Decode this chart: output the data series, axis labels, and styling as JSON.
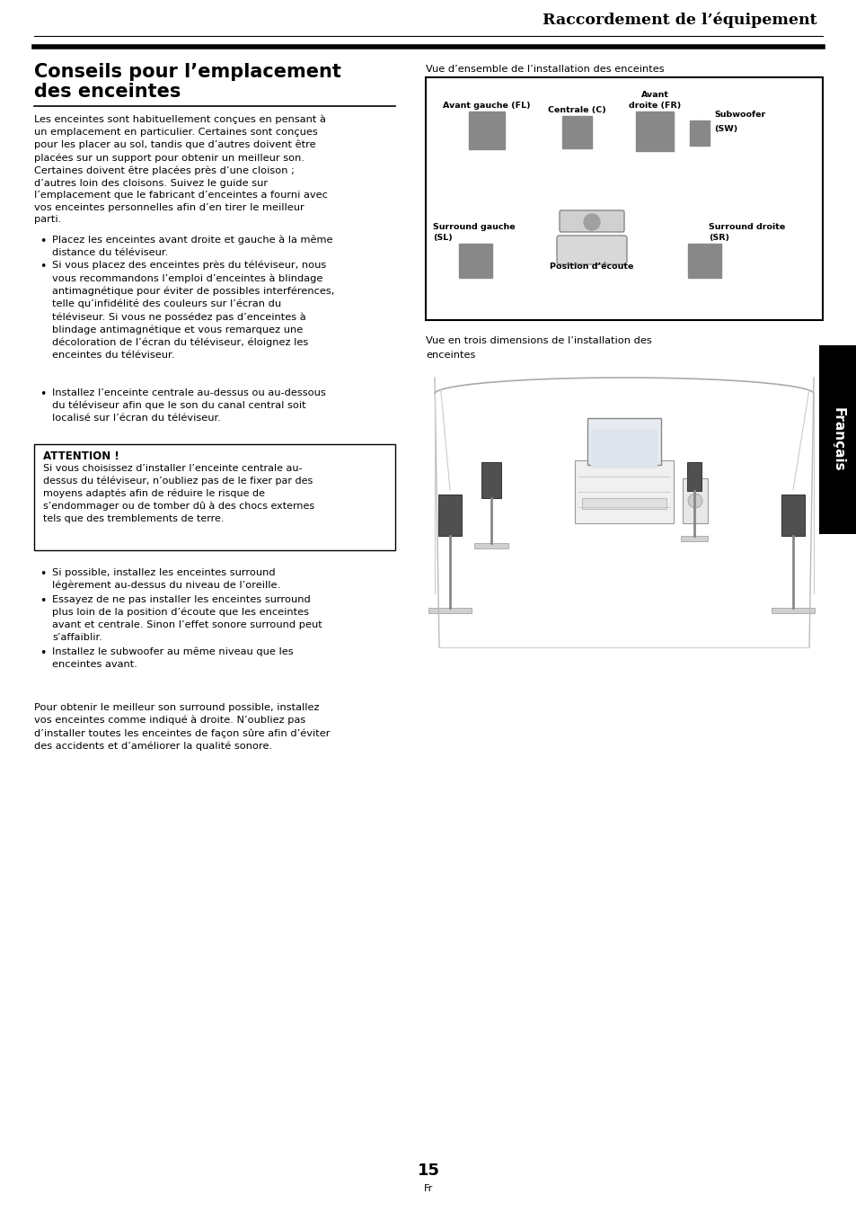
{
  "page_title": "Raccordement de l’équipement",
  "section_title_line1": "Conseils pour l’emplacement",
  "section_title_line2": "des enceintes",
  "body_text": "Les enceintes sont habituellement conçues en pensant à\nun emplacement en particulier. Certaines sont conçues\npour les placer au sol, tandis que d’autres doivent être\nplacées sur un support pour obtenir un meilleur son.\nCertaines doivent être placées près d’une cloison ;\nd’autres loin des cloisons. Suivez le guide sur\nl’emplacement que le fabricant d’enceintes a fourni avec\nvos enceintes personnelles afin d’en tirer le meilleur\nparti.",
  "bullet1": "Placez les enceintes avant droite et gauche à la même\ndistance du téléviseur.",
  "bullet2": "Si vous placez des enceintes près du téléviseur, nous\nvous recommandons l’emploi d’enceintes à blindage\nantimagnétique pour éviter de possibles interférences,\ntelle qu’infidélité des couleurs sur l’écran du\ntéléviseur. Si vous ne possédez pas d’enceintes à\nblindage antimagnétique et vous remarquez une\ndécoloration de l’écran du téléviseur, éloignez les\nenceintes du téléviseur.",
  "bullet3": "Installez l’enceinte centrale au-dessus ou au-dessous\ndu téléviseur afin que le son du canal central soit\nlocalisé sur l’écran du téléviseur.",
  "attn_title": "ATTENTION !",
  "attn_body": "Si vous choisissez d’installer l’enceinte centrale au-\ndessus du téléviseur, n’oubliez pas de le fixer par des\nmoyens adaptés afin de réduire le risque de\ns’endommager ou de tomber dû à des chocs externes\ntels que des tremblements de terre.",
  "bullet4": "Si possible, installez les enceintes surround\nlégèrement au-dessus du niveau de l’oreille.",
  "bullet5": "Essayez de ne pas installer les enceintes surround\nplus loin de la position d’écoute que les enceintes\navant et centrale. Sinon l’effet sonore surround peut\ns’affaiblir.",
  "bullet6": "Installez le subwoofer au même niveau que les\nenceintes avant.",
  "footer": "Pour obtenir le meilleur son surround possible, installez\nvos enceintes comme indiqué à droite. N’oubliez pas\nd’installer toutes les enceintes de façon sûre afin d’éviter\ndes accidents et d’améliorer la qualité sonore.",
  "diag1_title": "Vue d’ensemble de l’installation des enceintes",
  "diag2_line1": "Vue en trois dimensions de l’installation des",
  "diag2_line2": "enceintes",
  "lang_label": "Français",
  "page_number": "15",
  "page_sub": "Fr"
}
